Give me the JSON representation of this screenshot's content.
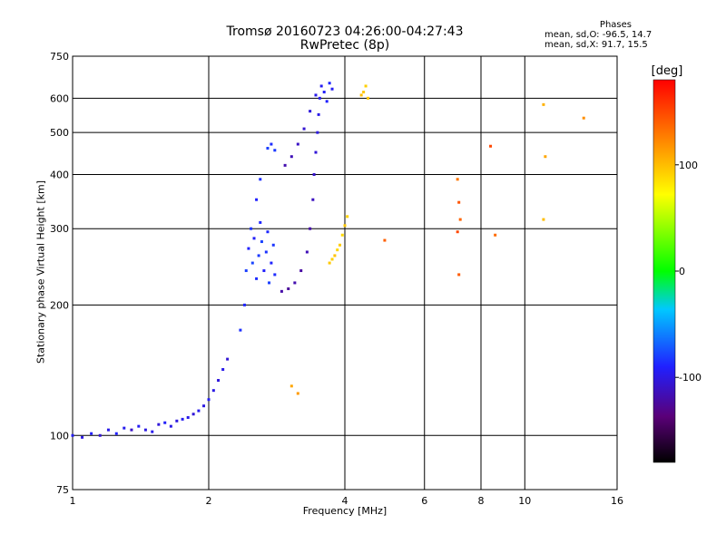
{
  "header": {
    "title_line1": "Tromsø 20160723 04:26:00-04:27:43",
    "title_line2": "RwPretec (8p)",
    "stats_title": "Phases",
    "stats_o": "mean, sd,O: -96.5, 14.7",
    "stats_x": "mean, sd,X:  91.7, 15.5"
  },
  "colorbar": {
    "label": "[deg]",
    "min": -180,
    "max": 180,
    "ticks": [
      100,
      0,
      -100
    ],
    "tick_labels": [
      "100",
      "0",
      "-100"
    ]
  },
  "chart_data": {
    "type": "scatter",
    "title": "Tromsø 20160723 04:26:00-04:27:43",
    "subtitle": "RwPretec (8p)",
    "xlabel": "Frequency [MHz]",
    "ylabel": "Stationary phase Virtual Height [km]",
    "xscale": "log",
    "yscale": "log",
    "xlim": [
      1,
      16
    ],
    "ylim": [
      75,
      750
    ],
    "xticks": [
      1,
      2,
      4,
      6,
      8,
      10,
      16
    ],
    "xtick_labels": [
      "1",
      "2",
      "4",
      "6",
      "8",
      "10",
      "16"
    ],
    "yticks": [
      75,
      100,
      200,
      300,
      400,
      500,
      600,
      750
    ],
    "ytick_labels": [
      "75",
      "100",
      "200",
      "300",
      "400",
      "500",
      "600",
      "750"
    ],
    "grid": true,
    "color_by": "phase",
    "series": [
      {
        "mode": "O",
        "points": [
          {
            "x": 1.0,
            "y": 100,
            "phase": -95
          },
          {
            "x": 1.05,
            "y": 99,
            "phase": -100
          },
          {
            "x": 1.1,
            "y": 101,
            "phase": -92
          },
          {
            "x": 1.15,
            "y": 100,
            "phase": -105
          },
          {
            "x": 1.2,
            "y": 103,
            "phase": -98
          },
          {
            "x": 1.25,
            "y": 101,
            "phase": -90
          },
          {
            "x": 1.3,
            "y": 104,
            "phase": -96
          },
          {
            "x": 1.35,
            "y": 103,
            "phase": -110
          },
          {
            "x": 1.4,
            "y": 105,
            "phase": -94
          },
          {
            "x": 1.45,
            "y": 103,
            "phase": -100
          },
          {
            "x": 1.5,
            "y": 102,
            "phase": -97
          },
          {
            "x": 1.55,
            "y": 106,
            "phase": -103
          },
          {
            "x": 1.6,
            "y": 107,
            "phase": -92
          },
          {
            "x": 1.65,
            "y": 105,
            "phase": -99
          },
          {
            "x": 1.7,
            "y": 108,
            "phase": -101
          },
          {
            "x": 1.75,
            "y": 109,
            "phase": -95
          },
          {
            "x": 1.8,
            "y": 110,
            "phase": -98
          },
          {
            "x": 1.85,
            "y": 112,
            "phase": -104
          },
          {
            "x": 1.9,
            "y": 114,
            "phase": -96
          },
          {
            "x": 1.95,
            "y": 117,
            "phase": -100
          },
          {
            "x": 2.0,
            "y": 121,
            "phase": -93
          },
          {
            "x": 2.05,
            "y": 127,
            "phase": -99
          },
          {
            "x": 2.1,
            "y": 134,
            "phase": -102
          },
          {
            "x": 2.15,
            "y": 142,
            "phase": -97
          },
          {
            "x": 2.2,
            "y": 150,
            "phase": -105
          },
          {
            "x": 2.35,
            "y": 175,
            "phase": -85
          },
          {
            "x": 2.4,
            "y": 200,
            "phase": -88
          },
          {
            "x": 2.42,
            "y": 240,
            "phase": -80
          },
          {
            "x": 2.45,
            "y": 270,
            "phase": -90
          },
          {
            "x": 2.48,
            "y": 300,
            "phase": -84
          },
          {
            "x": 2.5,
            "y": 250,
            "phase": -78
          },
          {
            "x": 2.52,
            "y": 285,
            "phase": -92
          },
          {
            "x": 2.55,
            "y": 230,
            "phase": -86
          },
          {
            "x": 2.58,
            "y": 260,
            "phase": -82
          },
          {
            "x": 2.6,
            "y": 310,
            "phase": -88
          },
          {
            "x": 2.62,
            "y": 280,
            "phase": -79
          },
          {
            "x": 2.65,
            "y": 240,
            "phase": -91
          },
          {
            "x": 2.68,
            "y": 265,
            "phase": -84
          },
          {
            "x": 2.7,
            "y": 295,
            "phase": -87
          },
          {
            "x": 2.72,
            "y": 225,
            "phase": -80
          },
          {
            "x": 2.75,
            "y": 250,
            "phase": -89
          },
          {
            "x": 2.78,
            "y": 275,
            "phase": -83
          },
          {
            "x": 2.8,
            "y": 235,
            "phase": -86
          },
          {
            "x": 2.55,
            "y": 350,
            "phase": -90
          },
          {
            "x": 2.6,
            "y": 390,
            "phase": -85
          },
          {
            "x": 2.7,
            "y": 460,
            "phase": -80
          },
          {
            "x": 2.75,
            "y": 470,
            "phase": -86
          },
          {
            "x": 2.8,
            "y": 455,
            "phase": -82
          },
          {
            "x": 2.9,
            "y": 215,
            "phase": -120
          },
          {
            "x": 3.0,
            "y": 218,
            "phase": -125
          },
          {
            "x": 3.1,
            "y": 225,
            "phase": -118
          },
          {
            "x": 3.2,
            "y": 240,
            "phase": -122
          },
          {
            "x": 3.3,
            "y": 265,
            "phase": -115
          },
          {
            "x": 3.35,
            "y": 300,
            "phase": -120
          },
          {
            "x": 3.4,
            "y": 350,
            "phase": -112
          },
          {
            "x": 3.42,
            "y": 400,
            "phase": -108
          },
          {
            "x": 3.45,
            "y": 450,
            "phase": -104
          },
          {
            "x": 3.48,
            "y": 500,
            "phase": -100
          },
          {
            "x": 3.5,
            "y": 550,
            "phase": -98
          },
          {
            "x": 3.52,
            "y": 600,
            "phase": -96
          },
          {
            "x": 2.95,
            "y": 420,
            "phase": -118
          },
          {
            "x": 3.05,
            "y": 440,
            "phase": -115
          },
          {
            "x": 3.15,
            "y": 470,
            "phase": -110
          },
          {
            "x": 3.25,
            "y": 510,
            "phase": -106
          },
          {
            "x": 3.35,
            "y": 560,
            "phase": -102
          },
          {
            "x": 3.45,
            "y": 610,
            "phase": -98
          },
          {
            "x": 3.55,
            "y": 640,
            "phase": -95
          },
          {
            "x": 3.6,
            "y": 620,
            "phase": -92
          },
          {
            "x": 3.65,
            "y": 590,
            "phase": -90
          },
          {
            "x": 3.7,
            "y": 650,
            "phase": -88
          },
          {
            "x": 3.75,
            "y": 630,
            "phase": -94
          }
        ]
      },
      {
        "mode": "X",
        "points": [
          {
            "x": 3.7,
            "y": 250,
            "phase": 95
          },
          {
            "x": 3.75,
            "y": 255,
            "phase": 92
          },
          {
            "x": 3.8,
            "y": 260,
            "phase": 98
          },
          {
            "x": 3.85,
            "y": 268,
            "phase": 90
          },
          {
            "x": 3.9,
            "y": 275,
            "phase": 94
          },
          {
            "x": 3.95,
            "y": 290,
            "phase": 88
          },
          {
            "x": 4.0,
            "y": 305,
            "phase": 96
          },
          {
            "x": 4.05,
            "y": 320,
            "phase": 91
          },
          {
            "x": 4.35,
            "y": 610,
            "phase": 100
          },
          {
            "x": 4.4,
            "y": 620,
            "phase": 96
          },
          {
            "x": 4.45,
            "y": 640,
            "phase": 92
          },
          {
            "x": 4.5,
            "y": 600,
            "phase": 98
          },
          {
            "x": 3.05,
            "y": 130,
            "phase": 110
          },
          {
            "x": 3.15,
            "y": 125,
            "phase": 115
          },
          {
            "x": 4.9,
            "y": 282,
            "phase": 140
          },
          {
            "x": 7.1,
            "y": 390,
            "phase": 130
          },
          {
            "x": 7.15,
            "y": 345,
            "phase": 145
          },
          {
            "x": 7.2,
            "y": 315,
            "phase": 138
          },
          {
            "x": 7.1,
            "y": 295,
            "phase": 150
          },
          {
            "x": 7.15,
            "y": 235,
            "phase": 142
          },
          {
            "x": 8.4,
            "y": 465,
            "phase": 150
          },
          {
            "x": 8.6,
            "y": 290,
            "phase": 135
          },
          {
            "x": 11.0,
            "y": 580,
            "phase": 105
          },
          {
            "x": 11.1,
            "y": 440,
            "phase": 110
          },
          {
            "x": 11.0,
            "y": 315,
            "phase": 100
          },
          {
            "x": 13.5,
            "y": 540,
            "phase": 120
          }
        ]
      }
    ]
  }
}
